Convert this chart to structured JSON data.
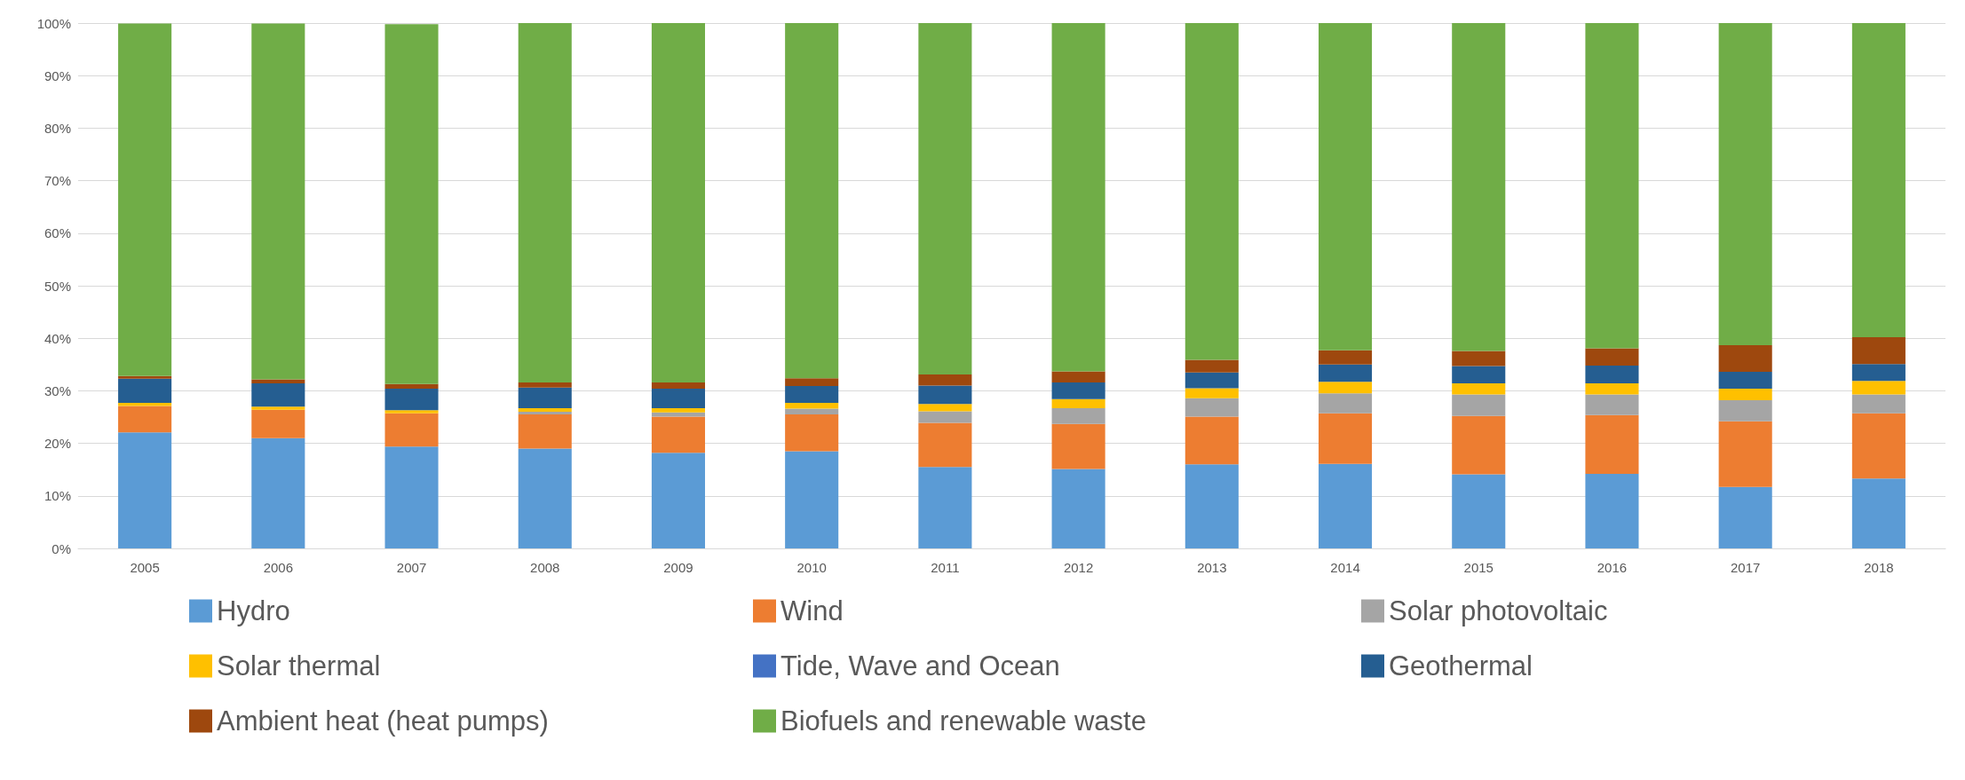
{
  "chart_data": {
    "type": "bar",
    "stacked": true,
    "grid": "y",
    "legend": "bottom",
    "categories": [
      "2005",
      "2006",
      "2007",
      "2008",
      "2009",
      "2010",
      "2011",
      "2012",
      "2013",
      "2014",
      "2015",
      "2016",
      "2017",
      "2018"
    ],
    "ylim": [
      0,
      100
    ],
    "yticks": [
      {
        "value": 0,
        "label": "0%"
      },
      {
        "value": 10,
        "label": "10%"
      },
      {
        "value": 20,
        "label": "20%"
      },
      {
        "value": 30,
        "label": "30%"
      },
      {
        "value": 40,
        "label": "40%"
      },
      {
        "value": 50,
        "label": "50%"
      },
      {
        "value": 60,
        "label": "60%"
      },
      {
        "value": 70,
        "label": "70%"
      },
      {
        "value": 80,
        "label": "80%"
      },
      {
        "value": 90,
        "label": "90%"
      },
      {
        "value": 100,
        "label": "100%"
      }
    ],
    "series": [
      {
        "name": "Hydro",
        "color": "#5b9bd5",
        "values": [
          22.1,
          21.0,
          19.4,
          19.0,
          18.2,
          18.5,
          15.5,
          15.1,
          16.0,
          16.1,
          14.1,
          14.2,
          11.7,
          13.3
        ]
      },
      {
        "name": "Wind",
        "color": "#ed7d31",
        "values": [
          5.0,
          5.4,
          6.3,
          6.5,
          6.9,
          7.0,
          8.4,
          8.6,
          9.1,
          9.6,
          11.1,
          11.2,
          12.5,
          12.4
        ]
      },
      {
        "name": "Solar photovoltaic",
        "color": "#a5a5a5",
        "values": [
          null,
          null,
          null,
          0.5,
          0.8,
          1.1,
          2.2,
          3.0,
          3.5,
          3.8,
          4.1,
          3.9,
          4.0,
          3.6
        ]
      },
      {
        "name": "Solar thermal",
        "color": "#ffc000",
        "values": [
          0.6,
          0.6,
          0.6,
          0.7,
          0.8,
          1.1,
          1.4,
          1.7,
          1.9,
          2.2,
          2.1,
          2.1,
          2.2,
          2.6
        ]
      },
      {
        "name": "Tide, Wave and Ocean",
        "color": "#4472c4",
        "values": [
          0,
          0,
          0,
          0,
          0,
          0,
          0,
          0,
          0,
          0,
          0,
          0,
          0,
          0
        ]
      },
      {
        "name": "Geothermal",
        "color": "#255e91",
        "values": [
          4.6,
          4.4,
          4.1,
          3.9,
          3.7,
          3.2,
          3.5,
          3.2,
          3.0,
          3.3,
          3.3,
          3.4,
          3.2,
          3.2
        ]
      },
      {
        "name": "Ambient heat (heat pumps)",
        "color": "#9e480e",
        "values": [
          0.5,
          0.8,
          0.9,
          1.0,
          1.2,
          1.5,
          2.1,
          2.1,
          2.4,
          2.7,
          2.9,
          3.3,
          5.1,
          5.1
        ]
      },
      {
        "name": "Biofuels and renewable waste",
        "color": "#70ad47",
        "values": [
          67.1,
          67.7,
          68.5,
          68.4,
          68.4,
          67.6,
          66.9,
          66.3,
          64.1,
          62.3,
          62.4,
          61.9,
          61.3,
          59.8
        ]
      }
    ]
  }
}
